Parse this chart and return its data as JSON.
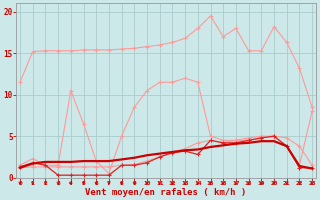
{
  "xlabel": "Vent moyen/en rafales ( km/h )",
  "x": [
    0,
    1,
    2,
    3,
    4,
    5,
    6,
    7,
    8,
    9,
    10,
    11,
    12,
    13,
    14,
    15,
    16,
    17,
    18,
    19,
    20,
    21,
    22,
    23
  ],
  "background_color": "#cce8e8",
  "grid_color": "#aacccc",
  "series": [
    {
      "name": "top_pink",
      "color": "#ff9999",
      "marker": "+",
      "linewidth": 0.8,
      "markersize": 3,
      "markeredgewidth": 0.8,
      "y": [
        11.5,
        15.2,
        15.3,
        15.3,
        15.3,
        15.4,
        15.4,
        15.4,
        15.5,
        15.6,
        15.8,
        16.0,
        16.3,
        16.8,
        18.0,
        19.5,
        17.0,
        18.0,
        15.3,
        15.3,
        18.2,
        16.3,
        13.2,
        8.5
      ]
    },
    {
      "name": "mid_pink",
      "color": "#ff9999",
      "marker": "+",
      "linewidth": 0.8,
      "markersize": 3,
      "markeredgewidth": 0.8,
      "y": [
        1.5,
        2.3,
        1.5,
        1.5,
        10.5,
        6.5,
        2.0,
        0.5,
        5.0,
        8.5,
        10.5,
        11.5,
        11.5,
        12.0,
        11.5,
        5.0,
        4.5,
        4.5,
        4.8,
        5.0,
        5.0,
        4.8,
        3.8,
        1.5
      ]
    },
    {
      "name": "bot_pink",
      "color": "#ff9999",
      "marker": "+",
      "linewidth": 0.8,
      "markersize": 3,
      "markeredgewidth": 0.8,
      "y": [
        1.2,
        1.3,
        1.3,
        1.3,
        1.3,
        1.3,
        1.3,
        1.3,
        1.5,
        1.6,
        2.0,
        2.5,
        3.0,
        3.5,
        4.2,
        4.5,
        4.2,
        4.5,
        4.5,
        4.8,
        5.0,
        3.8,
        1.5,
        8.0
      ]
    },
    {
      "name": "dark_top",
      "color": "#dd2222",
      "marker": "+",
      "linewidth": 0.9,
      "markersize": 3,
      "markeredgewidth": 0.8,
      "y": [
        1.3,
        1.8,
        1.5,
        0.3,
        0.3,
        0.3,
        0.3,
        0.3,
        1.5,
        1.5,
        1.8,
        2.5,
        3.0,
        3.2,
        2.8,
        4.5,
        4.2,
        4.2,
        4.5,
        4.8,
        5.0,
        3.8,
        1.2,
        1.2
      ]
    },
    {
      "name": "dark_mean",
      "color": "#cc0000",
      "marker": "None",
      "linewidth": 1.6,
      "markersize": 0,
      "markeredgewidth": 0,
      "y": [
        1.2,
        1.7,
        1.9,
        1.9,
        1.9,
        2.0,
        2.0,
        2.0,
        2.2,
        2.4,
        2.7,
        2.9,
        3.1,
        3.3,
        3.4,
        3.7,
        3.9,
        4.1,
        4.2,
        4.4,
        4.4,
        3.8,
        1.4,
        1.1
      ]
    }
  ],
  "yticks": [
    0,
    5,
    10,
    15,
    20
  ],
  "xticks": [
    0,
    1,
    2,
    3,
    4,
    5,
    6,
    7,
    8,
    9,
    10,
    11,
    12,
    13,
    14,
    15,
    16,
    17,
    18,
    19,
    20,
    21,
    22,
    23
  ],
  "ylim": [
    0,
    21
  ],
  "xlim": [
    -0.3,
    23.3
  ],
  "tick_color": "#cc0000",
  "label_color": "#cc0000",
  "axis_color": "#999999",
  "figsize": [
    3.2,
    2.0
  ],
  "dpi": 100
}
